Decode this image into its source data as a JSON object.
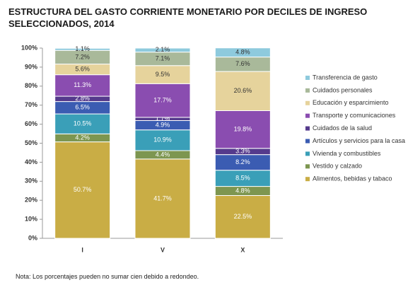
{
  "chart_data": {
    "type": "stacked-bar",
    "title": "ESTRUCTURA DEL GASTO CORRIENTE MONETARIO POR DECILES DE INGRESO SELECCIONADOS, 2014",
    "note": "Nota: Los porcentajes pueden no sumar cien debido a redondeo.",
    "categories": [
      "I",
      "V",
      "X"
    ],
    "ylim": [
      0,
      100
    ],
    "yticks": [
      {
        "value": 0,
        "label": "0%"
      },
      {
        "value": 10,
        "label": "10%"
      },
      {
        "value": 20,
        "label": "20%"
      },
      {
        "value": 30,
        "label": "30%"
      },
      {
        "value": 40,
        "label": "40%"
      },
      {
        "value": 50,
        "label": "50%"
      },
      {
        "value": 60,
        "label": "60%"
      },
      {
        "value": 70,
        "label": "70%"
      },
      {
        "value": 80,
        "label": "80%"
      },
      {
        "value": 90,
        "label": "90%"
      },
      {
        "value": 100,
        "label": "100%"
      }
    ],
    "legend": "right",
    "series": [
      {
        "name": "Alimentos, bebidas y tabaco",
        "color": "#c9ad45",
        "values": [
          50.7,
          41.7,
          22.5
        ],
        "value_labels": [
          "50.7%",
          "41.7%",
          "22.5%"
        ]
      },
      {
        "name": "Vestido y calzado",
        "color": "#7d9650",
        "values": [
          4.2,
          4.4,
          4.8
        ],
        "value_labels": [
          "4.2%",
          "4.4%",
          "4.8%"
        ]
      },
      {
        "name": "Vivienda y combustibles",
        "color": "#3a9fb8",
        "values": [
          10.5,
          10.9,
          8.5
        ],
        "value_labels": [
          "10.5%",
          "10.9%",
          "8.5%"
        ]
      },
      {
        "name": "Artículos y servicios para la casa",
        "color": "#3b5cb2",
        "values": [
          6.5,
          4.9,
          8.2
        ],
        "value_labels": [
          "6.5%",
          "4.9%",
          "8.2%"
        ]
      },
      {
        "name": "Cuidados de la salud",
        "color": "#553a8c",
        "values": [
          2.8,
          1.7,
          3.3
        ],
        "value_labels": [
          "2.8%",
          "1.7%",
          "3.3%"
        ]
      },
      {
        "name": "Transporte y comunicaciones",
        "color": "#8a4db0",
        "values": [
          11.3,
          17.7,
          19.8
        ],
        "value_labels": [
          "11.3%",
          "17.7%",
          "19.8%"
        ]
      },
      {
        "name": "Educación y esparcimiento",
        "color": "#e6d39c",
        "values": [
          5.6,
          9.5,
          20.6
        ],
        "value_labels": [
          "5.6%",
          "9.5%",
          "20.6%"
        ]
      },
      {
        "name": "Cuidados personales",
        "color": "#a9b99a",
        "values": [
          7.2,
          7.1,
          7.6
        ],
        "value_labels": [
          "7.2%",
          "7.1%",
          "7.6%"
        ]
      },
      {
        "name": "Transferencia de gasto",
        "color": "#8ecadd",
        "values": [
          1.1,
          2.1,
          4.8
        ],
        "value_labels": [
          "1.1%",
          "2.1%",
          "4.8%"
        ]
      }
    ]
  }
}
